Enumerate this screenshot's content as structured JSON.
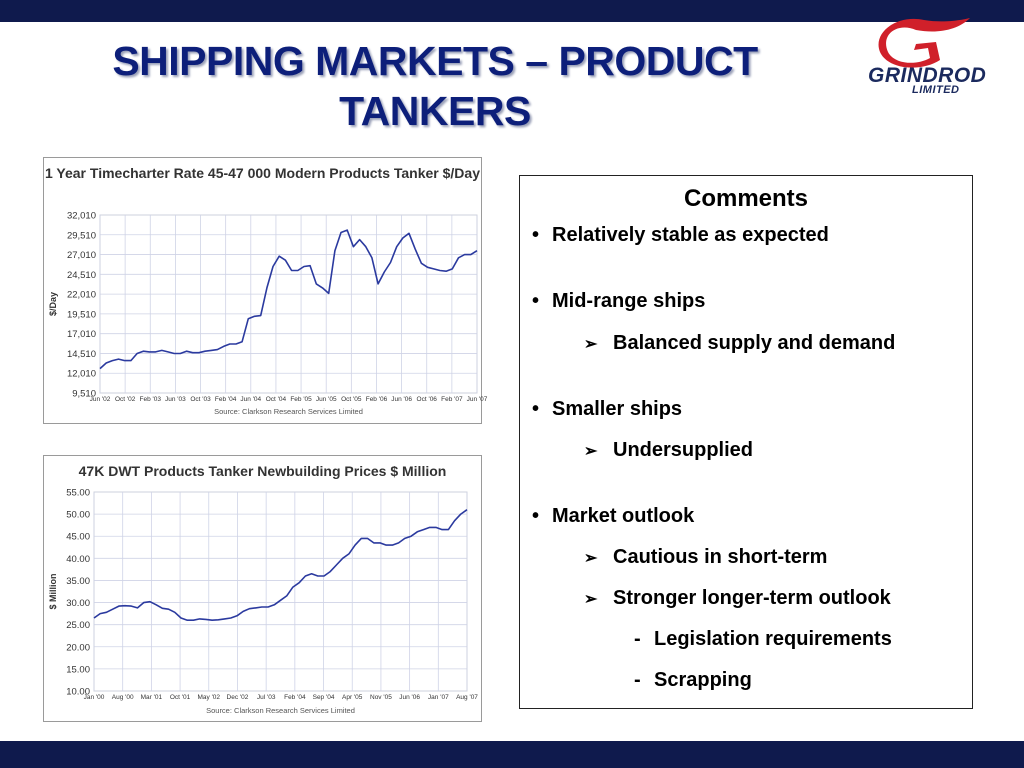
{
  "slide": {
    "title": "SHIPPING MARKETS – PRODUCT TANKERS",
    "logo": {
      "name": "GRINDROD",
      "sub": "LIMITED"
    },
    "colors": {
      "navy_bar": "#0f1a4d",
      "title": "#0d1f7a",
      "logo_red": "#d0202a",
      "series_line": "#2b3a9f"
    }
  },
  "comments": {
    "heading": "Comments",
    "items": [
      {
        "level": 1,
        "marker": "•",
        "text": "Relatively stable as expected"
      },
      {
        "level": 1,
        "marker": "•",
        "text": "Mid-range ships"
      },
      {
        "level": 2,
        "marker": "➢",
        "text": "Balanced supply and demand"
      },
      {
        "level": 1,
        "marker": "•",
        "text": "Smaller ships"
      },
      {
        "level": 2,
        "marker": "➢",
        "text": "Undersupplied"
      },
      {
        "level": 1,
        "marker": "•",
        "text": "Market outlook"
      },
      {
        "level": 2,
        "marker": "➢",
        "text": "Cautious in short-term"
      },
      {
        "level": 2,
        "marker": "➢",
        "text": "Stronger longer-term outlook"
      },
      {
        "level": 3,
        "marker": "-",
        "text": "Legislation requirements"
      },
      {
        "level": 3,
        "marker": "-",
        "text": "Scrapping"
      }
    ]
  },
  "chart_data": [
    {
      "type": "line",
      "title": "1 Year Timecharter Rate 45-47 000 Modern Products Tanker $/Day",
      "ylabel": "$/Day",
      "xlabel": "",
      "source": "Source: Clarkson Research Services Limited",
      "ylim": [
        9510,
        32010
      ],
      "yticks": [
        "9,510",
        "12,010",
        "14,510",
        "17,010",
        "19,510",
        "22,010",
        "24,510",
        "27,010",
        "29,510",
        "32,010"
      ],
      "xticks": [
        "Jun '02",
        "Oct '02",
        "Feb '03",
        "Jun '03",
        "Oct '03",
        "Feb '04",
        "Jun '04",
        "Oct '04",
        "Feb '05",
        "Jun '05",
        "Oct '05",
        "Feb '06",
        "Jun '06",
        "Oct '06",
        "Feb '07",
        "Jun '07"
      ],
      "grid": true,
      "series": [
        {
          "values": [
            12600,
            13300,
            13600,
            13800,
            13600,
            13600,
            14500,
            14800,
            14700,
            14700,
            14900,
            14700,
            14500,
            14500,
            14800,
            14600,
            14600,
            14800,
            14900,
            15000,
            15400,
            15700,
            15700,
            16000,
            18900,
            19200,
            19300,
            22800,
            25500,
            26800,
            26300,
            25000,
            25000,
            25500,
            25600,
            23300,
            22800,
            22100,
            27500,
            29800,
            30100,
            28000,
            28900,
            28000,
            26600,
            23300,
            24800,
            26000,
            28000,
            29100,
            29700,
            27700,
            25900,
            25400,
            25200,
            25000,
            24900,
            25200,
            26600,
            27000,
            27000,
            27500
          ]
        }
      ]
    },
    {
      "type": "line",
      "title": "47K DWT Products Tanker Newbuilding Prices $ Million",
      "ylabel": "$ Million",
      "xlabel": "",
      "source": "Source: Clarkson Research Services Limited",
      "ylim": [
        10,
        55
      ],
      "yticks": [
        "10.00",
        "15.00",
        "20.00",
        "25.00",
        "30.00",
        "35.00",
        "40.00",
        "45.00",
        "50.00",
        "55.00"
      ],
      "xticks": [
        "Jan '00",
        "Aug '00",
        "Mar '01",
        "Oct '01",
        "May '02",
        "Dec '02",
        "Jul '03",
        "Feb '04",
        "Sep '04",
        "Apr '05",
        "Nov '05",
        "Jun '06",
        "Jan '07",
        "Aug '07"
      ],
      "grid": true,
      "series": [
        {
          "values": [
            26.5,
            27.5,
            27.8,
            28.5,
            29.2,
            29.3,
            29.2,
            28.8,
            30.0,
            30.2,
            29.5,
            28.7,
            28.5,
            27.8,
            26.5,
            26.0,
            26.0,
            26.3,
            26.2,
            26.0,
            26.1,
            26.3,
            26.5,
            27.0,
            28.0,
            28.6,
            28.8,
            29.0,
            29.0,
            29.5,
            30.5,
            31.5,
            33.5,
            34.5,
            36.0,
            36.5,
            36.0,
            36.0,
            37.0,
            38.5,
            40.0,
            41.0,
            43.0,
            44.5,
            44.5,
            43.5,
            43.5,
            43.0,
            43.0,
            43.5,
            44.5,
            45.0,
            46.0,
            46.5,
            47.0,
            47.0,
            46.5,
            46.5,
            48.5,
            50.0,
            51.0
          ]
        }
      ]
    }
  ]
}
